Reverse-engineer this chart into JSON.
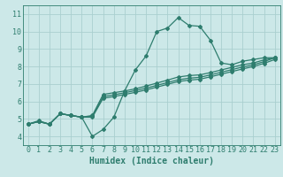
{
  "xlabel": "Humidex (Indice chaleur)",
  "ylabel": "",
  "bg_color": "#cce8e8",
  "grid_color": "#aacfcf",
  "line_color": "#2e7d6e",
  "xlim": [
    -0.5,
    23.5
  ],
  "ylim": [
    3.5,
    11.5
  ],
  "xticks": [
    0,
    1,
    2,
    3,
    4,
    5,
    6,
    7,
    8,
    9,
    10,
    11,
    12,
    13,
    14,
    15,
    16,
    17,
    18,
    19,
    20,
    21,
    22,
    23
  ],
  "yticks": [
    4,
    5,
    6,
    7,
    8,
    9,
    10,
    11
  ],
  "curves": [
    {
      "x": [
        0,
        1,
        2,
        3,
        4,
        5,
        6,
        7,
        8,
        9,
        10,
        11,
        12,
        13,
        14,
        15,
        16,
        17,
        18,
        19,
        20,
        21,
        22,
        23
      ],
      "y": [
        4.7,
        4.9,
        4.7,
        5.3,
        5.2,
        5.1,
        4.0,
        4.4,
        5.1,
        6.6,
        7.8,
        8.6,
        10.0,
        10.2,
        10.8,
        10.35,
        10.3,
        9.5,
        8.2,
        8.1,
        8.3,
        8.4,
        8.5,
        8.5
      ]
    },
    {
      "x": [
        0,
        1,
        2,
        3,
        4,
        5,
        6,
        7,
        8,
        9,
        10,
        11,
        12,
        13,
        14,
        15,
        16,
        17,
        18,
        19,
        20,
        21,
        22,
        23
      ],
      "y": [
        4.7,
        4.85,
        4.7,
        5.3,
        5.2,
        5.1,
        5.2,
        6.4,
        6.5,
        6.6,
        6.72,
        6.88,
        7.05,
        7.22,
        7.4,
        7.48,
        7.52,
        7.65,
        7.8,
        7.95,
        8.1,
        8.2,
        8.38,
        8.5
      ]
    },
    {
      "x": [
        0,
        1,
        2,
        3,
        4,
        5,
        6,
        7,
        8,
        9,
        10,
        11,
        12,
        13,
        14,
        15,
        16,
        17,
        18,
        19,
        20,
        21,
        22,
        23
      ],
      "y": [
        4.7,
        4.85,
        4.7,
        5.3,
        5.2,
        5.1,
        5.15,
        6.28,
        6.38,
        6.5,
        6.62,
        6.76,
        6.92,
        7.08,
        7.24,
        7.33,
        7.38,
        7.52,
        7.67,
        7.82,
        7.97,
        8.1,
        8.28,
        8.5
      ]
    },
    {
      "x": [
        0,
        1,
        2,
        3,
        4,
        5,
        6,
        7,
        8,
        9,
        10,
        11,
        12,
        13,
        14,
        15,
        16,
        17,
        18,
        19,
        20,
        21,
        22,
        23
      ],
      "y": [
        4.7,
        4.85,
        4.7,
        5.3,
        5.2,
        5.1,
        5.1,
        6.18,
        6.28,
        6.4,
        6.52,
        6.66,
        6.82,
        6.98,
        7.14,
        7.22,
        7.27,
        7.41,
        7.56,
        7.71,
        7.86,
        8.0,
        8.18,
        8.4
      ]
    }
  ],
  "marker": "D",
  "marker_size": 2.0,
  "line_width": 0.9,
  "font_family": "monospace",
  "xlabel_fontsize": 7,
  "tick_fontsize": 6
}
